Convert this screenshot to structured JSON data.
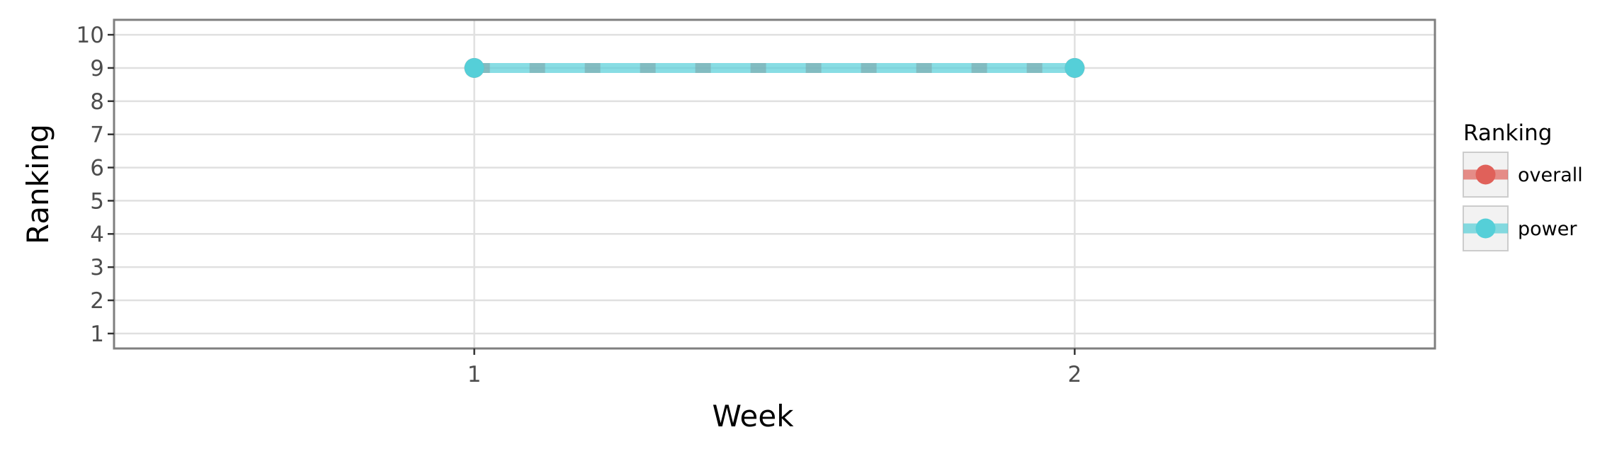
{
  "chart_data": {
    "type": "line",
    "xlabel": "Week",
    "ylabel": "Ranking",
    "x": [
      1,
      2
    ],
    "x_ticks": [
      "1",
      "2"
    ],
    "xlim": [
      0.4,
      2.6
    ],
    "ylim": [
      10.45,
      0.55
    ],
    "y_reversed": true,
    "y_ticks": [
      "1",
      "2",
      "3",
      "4",
      "5",
      "6",
      "7",
      "8",
      "9",
      "10"
    ],
    "grid": true,
    "legend": {
      "title": "Ranking",
      "placement": "right"
    },
    "series": [
      {
        "name": "overall",
        "values": [
          9,
          9
        ],
        "color": "#e0615a",
        "style": "dashed"
      },
      {
        "name": "power",
        "values": [
          9,
          9
        ],
        "color": "#55cfd8",
        "style": "solid"
      }
    ]
  }
}
